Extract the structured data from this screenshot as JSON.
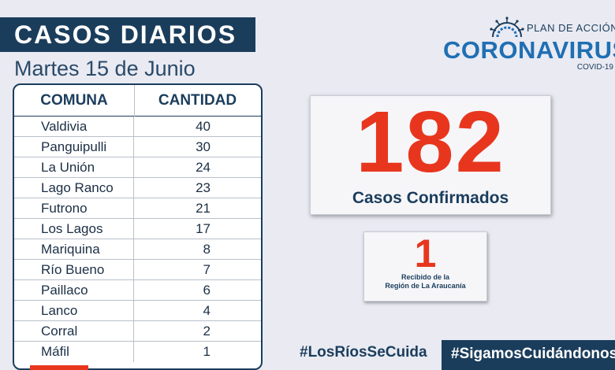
{
  "header": {
    "title": "CASOS DIARIOS",
    "subtitle": "Martes 15 de Junio"
  },
  "table": {
    "headers": [
      "COMUNA",
      "CANTIDAD"
    ],
    "rows": [
      {
        "comuna": "Valdivia",
        "cantidad": "40"
      },
      {
        "comuna": "Panguipulli",
        "cantidad": "30"
      },
      {
        "comuna": "La Unión",
        "cantidad": "24"
      },
      {
        "comuna": "Lago Ranco",
        "cantidad": "23"
      },
      {
        "comuna": "Futrono",
        "cantidad": "21"
      },
      {
        "comuna": "Los Lagos",
        "cantidad": "17"
      },
      {
        "comuna": "Mariquina",
        "cantidad": "8"
      },
      {
        "comuna": "Río Bueno",
        "cantidad": "7"
      },
      {
        "comuna": "Paillaco",
        "cantidad": "6"
      },
      {
        "comuna": "Lanco",
        "cantidad": "4"
      },
      {
        "comuna": "Corral",
        "cantidad": "2"
      },
      {
        "comuna": "Máfil",
        "cantidad": "1"
      }
    ]
  },
  "total": {
    "number": "182",
    "label": "Casos Confirmados"
  },
  "received": {
    "number": "1",
    "label_line1": "Recibido de la",
    "label_line2": "Región de La Araucanía"
  },
  "logo": {
    "plan": "PLAN DE ACCIÓN",
    "name": "CORONAVIRUS",
    "sub": "COVID-19",
    "icon": "virus-icon"
  },
  "hashtags": {
    "first": "#LosRíosSeCuida",
    "second": "#SigamosCuidándonos"
  },
  "colors": {
    "navy": "#1b3d5c",
    "red": "#e8361e",
    "blue": "#1f6fb3",
    "background": "#e9eaf2"
  }
}
